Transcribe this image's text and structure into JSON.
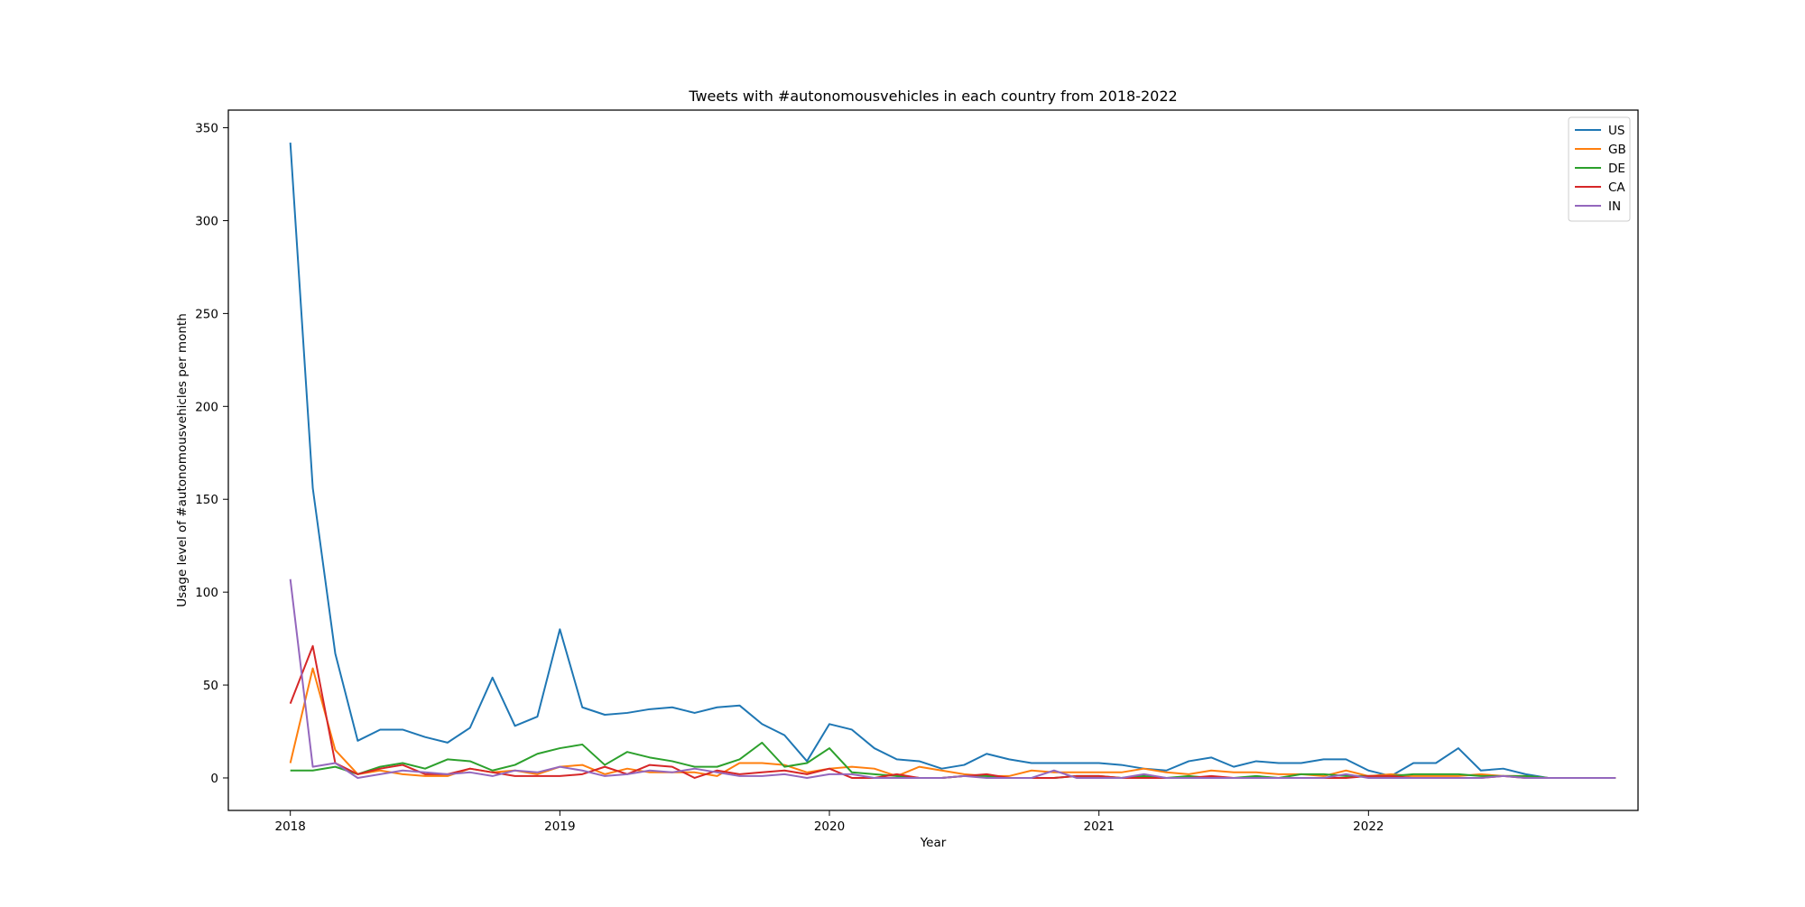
{
  "chart_data": {
    "type": "line",
    "title": "Tweets with #autonomousvehicles in each country from 2018-2022",
    "xlabel": "Year",
    "ylabel": "Usage level of #autonomousvehicles per month",
    "x_start_year": 2018,
    "x_step_months": 1,
    "xlim": [
      2017.77,
      2023.0
    ],
    "ylim": [
      -17.5,
      359.5
    ],
    "xticks": [
      2018,
      2019,
      2020,
      2021,
      2022
    ],
    "yticks": [
      0,
      50,
      100,
      150,
      200,
      250,
      300,
      350
    ],
    "grid": false,
    "legend_position": "upper right",
    "series": [
      {
        "name": "US",
        "color": "#1f77b4",
        "values": [
          342,
          156,
          67,
          20,
          26,
          26,
          22,
          19,
          27,
          54,
          28,
          33,
          80,
          38,
          34,
          35,
          37,
          38,
          35,
          38,
          39,
          29,
          23,
          9,
          29,
          26,
          16,
          10,
          9,
          5,
          7,
          13,
          10,
          8,
          8,
          8,
          8,
          7,
          5,
          4,
          9,
          11,
          6,
          9,
          8,
          8,
          10,
          10,
          4,
          1,
          8,
          8,
          16,
          4,
          5,
          2,
          0,
          0,
          0,
          0
        ]
      },
      {
        "name": "GB",
        "color": "#ff7f0e",
        "values": [
          8,
          59,
          15,
          2,
          4,
          2,
          1,
          1,
          5,
          3,
          4,
          2,
          6,
          7,
          2,
          5,
          3,
          3,
          3,
          1,
          8,
          8,
          7,
          3,
          5,
          6,
          5,
          1,
          6,
          4,
          2,
          1,
          1,
          4,
          3,
          3,
          3,
          3,
          5,
          3,
          2,
          4,
          3,
          3,
          2,
          2,
          1,
          4,
          1,
          2,
          1,
          1,
          1,
          2,
          1,
          1,
          0,
          0,
          0,
          0
        ]
      },
      {
        "name": "DE",
        "color": "#2ca02c",
        "values": [
          4,
          4,
          6,
          2,
          6,
          8,
          5,
          10,
          9,
          4,
          7,
          13,
          16,
          18,
          7,
          14,
          11,
          9,
          6,
          6,
          10,
          19,
          6,
          8,
          16,
          3,
          2,
          1,
          0,
          0,
          1,
          1,
          0,
          0,
          0,
          1,
          1,
          0,
          1,
          0,
          1,
          0,
          0,
          1,
          0,
          2,
          2,
          1,
          1,
          1,
          2,
          2,
          2,
          1,
          1,
          1,
          0,
          0,
          0,
          0
        ]
      },
      {
        "name": "CA",
        "color": "#d62728",
        "values": [
          40,
          71,
          8,
          2,
          5,
          7,
          2,
          2,
          5,
          3,
          1,
          1,
          1,
          2,
          6,
          2,
          7,
          6,
          0,
          4,
          2,
          3,
          4,
          2,
          5,
          0,
          0,
          2,
          0,
          0,
          1,
          2,
          0,
          0,
          0,
          1,
          1,
          0,
          0,
          0,
          0,
          1,
          0,
          0,
          0,
          0,
          0,
          0,
          1,
          1,
          0,
          0,
          0,
          0,
          1,
          0,
          0,
          0,
          0,
          0
        ]
      },
      {
        "name": "IN",
        "color": "#9467bd",
        "values": [
          107,
          6,
          8,
          0,
          2,
          4,
          3,
          2,
          3,
          1,
          4,
          3,
          6,
          4,
          1,
          2,
          4,
          3,
          5,
          3,
          1,
          1,
          2,
          0,
          2,
          2,
          0,
          0,
          0,
          0,
          1,
          0,
          0,
          0,
          4,
          0,
          0,
          0,
          2,
          0,
          0,
          0,
          0,
          0,
          0,
          0,
          0,
          2,
          0,
          0,
          0,
          0,
          0,
          0,
          1,
          0,
          0,
          0,
          0,
          0
        ]
      }
    ]
  }
}
